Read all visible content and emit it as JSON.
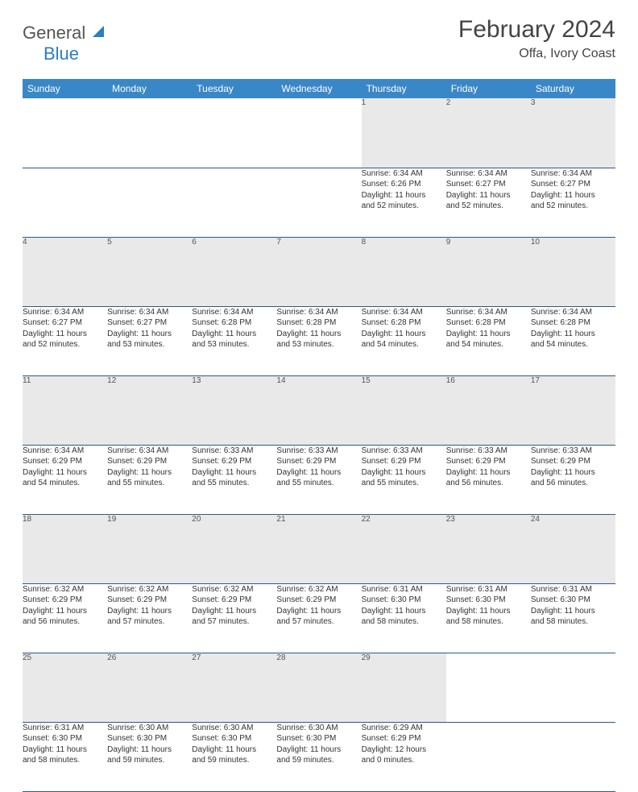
{
  "brand": {
    "line1": "General",
    "line2": "Blue"
  },
  "title": "February 2024",
  "location": "Offa, Ivory Coast",
  "colors": {
    "header_bg": "#3a87c8",
    "header_fg": "#ffffff",
    "daynum_bg": "#e9e9e9",
    "border": "#35628f",
    "brand_blue": "#2b7ec1",
    "text": "#333333"
  },
  "weekdays": [
    "Sunday",
    "Monday",
    "Tuesday",
    "Wednesday",
    "Thursday",
    "Friday",
    "Saturday"
  ],
  "weeks": [
    [
      null,
      null,
      null,
      null,
      {
        "n": "1",
        "sr": "6:34 AM",
        "ss": "6:26 PM",
        "dh": "11",
        "dm": "52"
      },
      {
        "n": "2",
        "sr": "6:34 AM",
        "ss": "6:27 PM",
        "dh": "11",
        "dm": "52"
      },
      {
        "n": "3",
        "sr": "6:34 AM",
        "ss": "6:27 PM",
        "dh": "11",
        "dm": "52"
      }
    ],
    [
      {
        "n": "4",
        "sr": "6:34 AM",
        "ss": "6:27 PM",
        "dh": "11",
        "dm": "52"
      },
      {
        "n": "5",
        "sr": "6:34 AM",
        "ss": "6:27 PM",
        "dh": "11",
        "dm": "53"
      },
      {
        "n": "6",
        "sr": "6:34 AM",
        "ss": "6:28 PM",
        "dh": "11",
        "dm": "53"
      },
      {
        "n": "7",
        "sr": "6:34 AM",
        "ss": "6:28 PM",
        "dh": "11",
        "dm": "53"
      },
      {
        "n": "8",
        "sr": "6:34 AM",
        "ss": "6:28 PM",
        "dh": "11",
        "dm": "54"
      },
      {
        "n": "9",
        "sr": "6:34 AM",
        "ss": "6:28 PM",
        "dh": "11",
        "dm": "54"
      },
      {
        "n": "10",
        "sr": "6:34 AM",
        "ss": "6:28 PM",
        "dh": "11",
        "dm": "54"
      }
    ],
    [
      {
        "n": "11",
        "sr": "6:34 AM",
        "ss": "6:29 PM",
        "dh": "11",
        "dm": "54"
      },
      {
        "n": "12",
        "sr": "6:34 AM",
        "ss": "6:29 PM",
        "dh": "11",
        "dm": "55"
      },
      {
        "n": "13",
        "sr": "6:33 AM",
        "ss": "6:29 PM",
        "dh": "11",
        "dm": "55"
      },
      {
        "n": "14",
        "sr": "6:33 AM",
        "ss": "6:29 PM",
        "dh": "11",
        "dm": "55"
      },
      {
        "n": "15",
        "sr": "6:33 AM",
        "ss": "6:29 PM",
        "dh": "11",
        "dm": "55"
      },
      {
        "n": "16",
        "sr": "6:33 AM",
        "ss": "6:29 PM",
        "dh": "11",
        "dm": "56"
      },
      {
        "n": "17",
        "sr": "6:33 AM",
        "ss": "6:29 PM",
        "dh": "11",
        "dm": "56"
      }
    ],
    [
      {
        "n": "18",
        "sr": "6:32 AM",
        "ss": "6:29 PM",
        "dh": "11",
        "dm": "56"
      },
      {
        "n": "19",
        "sr": "6:32 AM",
        "ss": "6:29 PM",
        "dh": "11",
        "dm": "57"
      },
      {
        "n": "20",
        "sr": "6:32 AM",
        "ss": "6:29 PM",
        "dh": "11",
        "dm": "57"
      },
      {
        "n": "21",
        "sr": "6:32 AM",
        "ss": "6:29 PM",
        "dh": "11",
        "dm": "57"
      },
      {
        "n": "22",
        "sr": "6:31 AM",
        "ss": "6:30 PM",
        "dh": "11",
        "dm": "58"
      },
      {
        "n": "23",
        "sr": "6:31 AM",
        "ss": "6:30 PM",
        "dh": "11",
        "dm": "58"
      },
      {
        "n": "24",
        "sr": "6:31 AM",
        "ss": "6:30 PM",
        "dh": "11",
        "dm": "58"
      }
    ],
    [
      {
        "n": "25",
        "sr": "6:31 AM",
        "ss": "6:30 PM",
        "dh": "11",
        "dm": "58"
      },
      {
        "n": "26",
        "sr": "6:30 AM",
        "ss": "6:30 PM",
        "dh": "11",
        "dm": "59"
      },
      {
        "n": "27",
        "sr": "6:30 AM",
        "ss": "6:30 PM",
        "dh": "11",
        "dm": "59"
      },
      {
        "n": "28",
        "sr": "6:30 AM",
        "ss": "6:30 PM",
        "dh": "11",
        "dm": "59"
      },
      {
        "n": "29",
        "sr": "6:29 AM",
        "ss": "6:29 PM",
        "dh": "12",
        "dm": "0"
      },
      null,
      null
    ]
  ]
}
